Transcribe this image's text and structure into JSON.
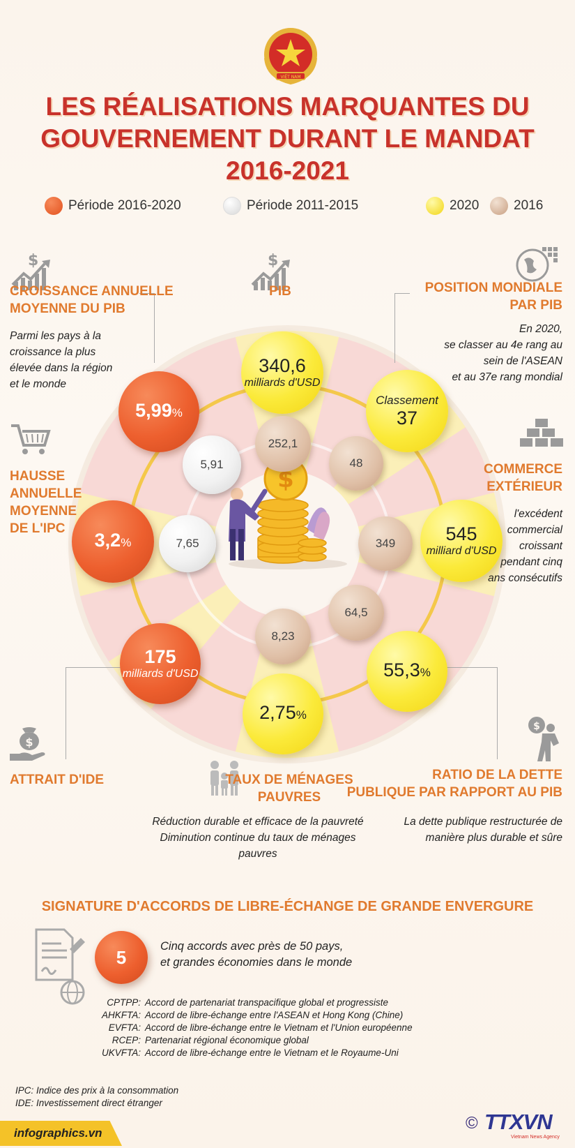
{
  "title_lines": [
    "LES RÉALISATIONS MARQUANTES DU",
    "GOUVERNEMENT DURANT LE MANDAT",
    "2016-2021"
  ],
  "legend": [
    {
      "label": "Période 2016-2020",
      "color": "#ed5f2e"
    },
    {
      "label": "Période 2011-2015",
      "color": "#eeeeee"
    },
    {
      "label": "2020",
      "color": "#f7e23a"
    },
    {
      "label": "2016",
      "color": "#d8b59b"
    }
  ],
  "sections": {
    "croissance": {
      "heading": [
        "CROISSANCE ANNUELLE",
        "MOYENNE DU PIB"
      ],
      "desc": [
        "Parmi les pays à la",
        "croissance la plus",
        "élevée dans la région",
        "et le monde"
      ],
      "value": "5,99",
      "unit": "%",
      "prev": "5,91"
    },
    "pib": {
      "heading": "PIB",
      "value": "340,6",
      "unit": "milliards d'USD",
      "prev": "252,1"
    },
    "position": {
      "heading": [
        "POSITION MONDIALE",
        "PAR PIB"
      ],
      "desc": [
        "En 2020,",
        "se classer au 4e rang au",
        "sein de l'ASEAN",
        "et au 37e rang mondial"
      ],
      "label": "Classement",
      "value": "37",
      "prev": "48"
    },
    "ipc": {
      "heading": [
        "HAUSSE",
        "ANNUELLE",
        "MOYENNE",
        "DE L'IPC"
      ],
      "value": "3,2",
      "unit": "%",
      "prev": "7,65"
    },
    "commerce": {
      "heading": [
        "COMMERCE",
        "EXTÉRIEUR"
      ],
      "desc": [
        "l'excédent",
        "commercial",
        "croissant",
        "pendant cinq",
        "ans consécutifs"
      ],
      "value": "545",
      "unit": "milliard d'USD",
      "prev": "349"
    },
    "ide": {
      "heading": "ATTRAIT D'IDE",
      "value": "175",
      "unit": "milliards d'USD"
    },
    "pauvres": {
      "heading": [
        "TAUX DE MÉNAGES",
        "PAUVRES"
      ],
      "desc": [
        "Réduction durable et efficace de la pauvreté",
        "Diminution continue du taux de ménages",
        "pauvres"
      ],
      "value": "2,75",
      "unit": "%",
      "prev": "8,23"
    },
    "dette": {
      "heading": [
        "RATIO DE LA DETTE",
        "PUBLIQUE PAR RAPPORT AU PIB"
      ],
      "desc": [
        "La dette publique restructurée de",
        "manière plus durable et sûre"
      ],
      "value": "55,3",
      "unit": "%",
      "prev": "64,5"
    }
  },
  "accords": {
    "heading": "SIGNATURE D'ACCORDS DE LIBRE-ÉCHANGE DE GRANDE ENVERGURE",
    "count": "5",
    "desc": [
      "Cinq accords avec près de 50 pays,",
      "et grandes économies dans le monde"
    ],
    "list": [
      {
        "abbr": "CPTPP:",
        "name": "Accord de partenariat transpacifique global et progressiste"
      },
      {
        "abbr": "AHKFTA:",
        "name": "Accord de libre-échange entre l'ASEAN et Hong Kong (Chine)"
      },
      {
        "abbr": "EVFTA:",
        "name": "Accord de libre-échange entre le Vietnam et l'Union européenne"
      },
      {
        "abbr": "RCEP:",
        "name": "Partenariat régional économique global"
      },
      {
        "abbr": "UKVFTA:",
        "name": "Accord de libre-échange entre le Vietnam et le Royaume-Uni"
      }
    ]
  },
  "footnotes": [
    "IPC: Indice des prix à la consommation",
    "IDE: Investissement direct étranger"
  ],
  "footer": {
    "site": "infographics.vn",
    "copyright": "©",
    "agency_logo": "TTXVN",
    "agency_sub": "Vietnam News Agency"
  },
  "emblem_text": "VIỆT NAM"
}
